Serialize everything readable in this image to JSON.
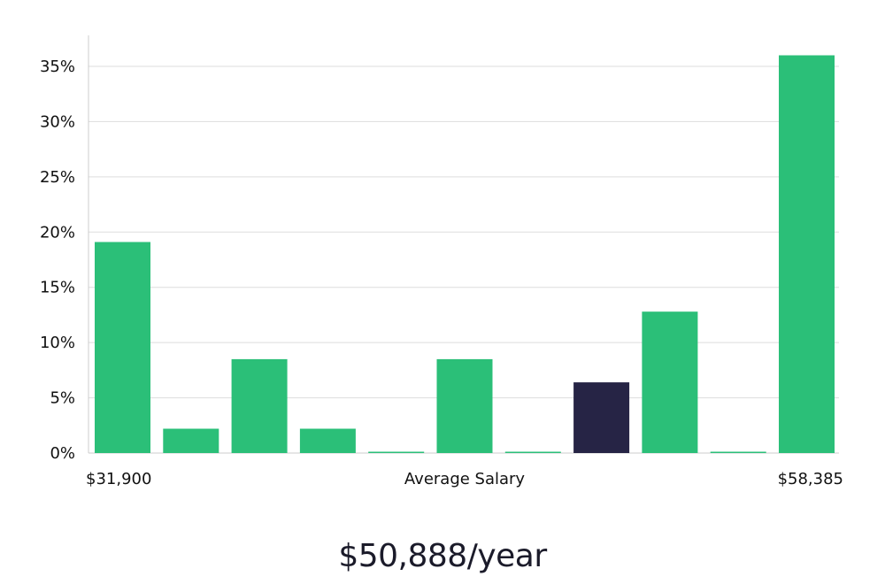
{
  "chart_data": {
    "type": "bar",
    "ylim": [
      0,
      37.5
    ],
    "y_ticks": [
      0,
      5,
      10,
      15,
      20,
      25,
      30,
      35
    ],
    "y_tick_format": "%",
    "grid": true,
    "values": [
      19.1,
      2.2,
      8.5,
      2.2,
      0.1,
      8.5,
      0.1,
      6.4,
      12.8,
      0.1,
      36.0
    ],
    "highlight_index": 7,
    "x_labels": {
      "left": "$31,900",
      "center": "Average Salary",
      "right": "$58,385"
    },
    "colors": {
      "bar": "#2bbf78",
      "highlight": "#262445",
      "grid": "#dddddd",
      "axis": "#cccccc"
    }
  },
  "salary": {
    "value_text": "$50,888/year"
  }
}
